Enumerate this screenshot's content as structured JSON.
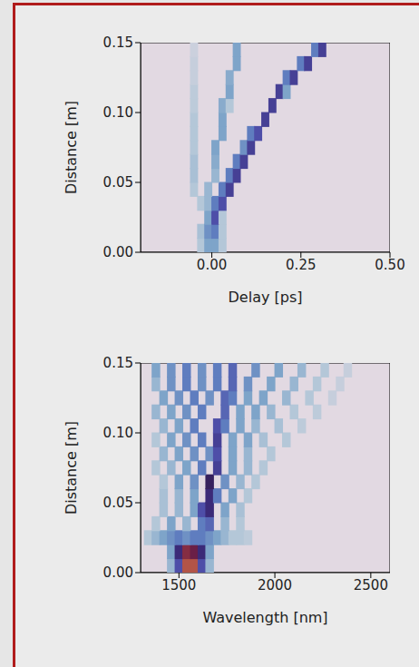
{
  "chart_data": [
    {
      "type": "heatmap",
      "x_label": "Delay [ps]",
      "y_label": "Distance [m]",
      "xlim": [
        -0.2,
        0.5
      ],
      "xticks": [
        {
          "value": 0,
          "label": "0.00"
        },
        {
          "value": 0.25,
          "label": "0.25"
        },
        {
          "value": 0.5,
          "label": "0.50"
        }
      ],
      "ylim": [
        0,
        0.15
      ],
      "yticks": [
        {
          "value": 0,
          "label": "0.00"
        },
        {
          "value": 0.05,
          "label": "0.05"
        },
        {
          "value": 0.1,
          "label": "0.10"
        },
        {
          "value": 0.15,
          "label": "0.15"
        }
      ],
      "grid": false,
      "tick_labels": true,
      "cell_size": [
        0.02,
        0.01
      ],
      "cells": [
        [
          -0.03,
          0.005,
          0.1
        ],
        [
          -0.01,
          0.005,
          0.2
        ],
        [
          0.01,
          0.005,
          0.2
        ],
        [
          0.03,
          0.005,
          0.1
        ],
        [
          -0.03,
          0.015,
          0.12
        ],
        [
          -0.01,
          0.015,
          0.25
        ],
        [
          0.01,
          0.015,
          0.3
        ],
        [
          0.03,
          0.015,
          0.1
        ],
        [
          -0.01,
          0.025,
          0.2
        ],
        [
          0.01,
          0.025,
          0.4
        ],
        [
          0.03,
          0.025,
          0.1
        ],
        [
          -0.03,
          0.035,
          0.1
        ],
        [
          -0.01,
          0.035,
          0.15
        ],
        [
          0.01,
          0.035,
          0.3
        ],
        [
          0.03,
          0.035,
          0.4
        ],
        [
          -0.05,
          0.045,
          0.1
        ],
        [
          -0.01,
          0.045,
          0.15
        ],
        [
          0.03,
          0.045,
          0.3
        ],
        [
          0.05,
          0.045,
          0.42
        ],
        [
          -0.05,
          0.055,
          0.12
        ],
        [
          0.01,
          0.055,
          0.15
        ],
        [
          0.05,
          0.055,
          0.3
        ],
        [
          0.07,
          0.055,
          0.42
        ],
        [
          -0.05,
          0.065,
          0.12
        ],
        [
          0.01,
          0.065,
          0.18
        ],
        [
          0.07,
          0.065,
          0.3
        ],
        [
          0.09,
          0.065,
          0.42
        ],
        [
          -0.05,
          0.075,
          0.1
        ],
        [
          0.01,
          0.075,
          0.2
        ],
        [
          0.09,
          0.075,
          0.25
        ],
        [
          0.11,
          0.075,
          0.42
        ],
        [
          -0.05,
          0.085,
          0.1
        ],
        [
          0.03,
          0.085,
          0.2
        ],
        [
          0.11,
          0.085,
          0.3
        ],
        [
          0.13,
          0.085,
          0.4
        ],
        [
          -0.05,
          0.095,
          0.1
        ],
        [
          0.03,
          0.095,
          0.2
        ],
        [
          0.15,
          0.095,
          0.42
        ],
        [
          -0.05,
          0.105,
          0.08
        ],
        [
          0.03,
          0.105,
          0.18
        ],
        [
          0.05,
          0.105,
          0.1
        ],
        [
          0.17,
          0.105,
          0.42
        ],
        [
          -0.05,
          0.115,
          0.08
        ],
        [
          0.05,
          0.115,
          0.2
        ],
        [
          0.19,
          0.115,
          0.42
        ],
        [
          0.21,
          0.115,
          0.2
        ],
        [
          -0.05,
          0.125,
          0.06
        ],
        [
          0.05,
          0.125,
          0.18
        ],
        [
          0.21,
          0.125,
          0.3
        ],
        [
          0.23,
          0.125,
          0.42
        ],
        [
          -0.05,
          0.135,
          0.06
        ],
        [
          0.07,
          0.135,
          0.2
        ],
        [
          0.25,
          0.135,
          0.3
        ],
        [
          0.27,
          0.135,
          0.42
        ],
        [
          -0.05,
          0.145,
          0.05
        ],
        [
          0.07,
          0.145,
          0.2
        ],
        [
          0.29,
          0.145,
          0.3
        ],
        [
          0.31,
          0.145,
          0.42
        ]
      ]
    },
    {
      "type": "heatmap",
      "x_label": "Wavelength [nm]",
      "y_label": "Distance [m]",
      "xlim": [
        1300,
        2600
      ],
      "xticks": [
        1500,
        2000,
        2500
      ],
      "ylim": [
        0,
        0.15
      ],
      "yticks": [
        {
          "value": 0,
          "label": "0.00"
        },
        {
          "value": 0.05,
          "label": "0.05"
        },
        {
          "value": 0.1,
          "label": "0.10"
        },
        {
          "value": 0.15,
          "label": "0.15"
        }
      ],
      "grid": false,
      "tick_labels": true,
      "cell_size": [
        40,
        0.01
      ],
      "cells": [
        [
          1460,
          0.005,
          0.15
        ],
        [
          1500,
          0.005,
          0.4
        ],
        [
          1540,
          0.005,
          0.75
        ],
        [
          1580,
          0.005,
          0.75
        ],
        [
          1620,
          0.005,
          0.4
        ],
        [
          1660,
          0.005,
          0.15
        ],
        [
          1460,
          0.015,
          0.2
        ],
        [
          1500,
          0.015,
          0.45
        ],
        [
          1540,
          0.015,
          0.65
        ],
        [
          1580,
          0.015,
          0.6
        ],
        [
          1620,
          0.015,
          0.45
        ],
        [
          1660,
          0.015,
          0.2
        ],
        [
          1340,
          0.025,
          0.1
        ],
        [
          1380,
          0.025,
          0.15
        ],
        [
          1420,
          0.025,
          0.2
        ],
        [
          1460,
          0.025,
          0.25
        ],
        [
          1500,
          0.025,
          0.3
        ],
        [
          1540,
          0.025,
          0.25
        ],
        [
          1580,
          0.025,
          0.3
        ],
        [
          1620,
          0.025,
          0.3
        ],
        [
          1660,
          0.025,
          0.25
        ],
        [
          1700,
          0.025,
          0.2
        ],
        [
          1740,
          0.025,
          0.15
        ],
        [
          1780,
          0.025,
          0.1
        ],
        [
          1820,
          0.025,
          0.1
        ],
        [
          1860,
          0.025,
          0.08
        ],
        [
          1380,
          0.035,
          0.1
        ],
        [
          1460,
          0.035,
          0.2
        ],
        [
          1540,
          0.035,
          0.15
        ],
        [
          1620,
          0.035,
          0.3
        ],
        [
          1660,
          0.035,
          0.35
        ],
        [
          1740,
          0.035,
          0.15
        ],
        [
          1820,
          0.035,
          0.1
        ],
        [
          1420,
          0.045,
          0.12
        ],
        [
          1500,
          0.045,
          0.15
        ],
        [
          1580,
          0.045,
          0.2
        ],
        [
          1620,
          0.045,
          0.4
        ],
        [
          1660,
          0.045,
          0.45
        ],
        [
          1740,
          0.045,
          0.2
        ],
        [
          1820,
          0.045,
          0.12
        ],
        [
          1420,
          0.055,
          0.12
        ],
        [
          1500,
          0.055,
          0.15
        ],
        [
          1580,
          0.055,
          0.2
        ],
        [
          1660,
          0.055,
          0.45
        ],
        [
          1700,
          0.055,
          0.3
        ],
        [
          1780,
          0.055,
          0.2
        ],
        [
          1860,
          0.055,
          0.1
        ],
        [
          1420,
          0.065,
          0.1
        ],
        [
          1500,
          0.065,
          0.2
        ],
        [
          1580,
          0.065,
          0.25
        ],
        [
          1660,
          0.065,
          0.47
        ],
        [
          1740,
          0.065,
          0.25
        ],
        [
          1820,
          0.065,
          0.15
        ],
        [
          1900,
          0.065,
          0.1
        ],
        [
          1380,
          0.075,
          0.1
        ],
        [
          1460,
          0.075,
          0.15
        ],
        [
          1540,
          0.075,
          0.2
        ],
        [
          1620,
          0.075,
          0.3
        ],
        [
          1700,
          0.075,
          0.42
        ],
        [
          1780,
          0.075,
          0.2
        ],
        [
          1860,
          0.075,
          0.15
        ],
        [
          1940,
          0.075,
          0.1
        ],
        [
          1420,
          0.085,
          0.15
        ],
        [
          1500,
          0.085,
          0.2
        ],
        [
          1580,
          0.085,
          0.25
        ],
        [
          1660,
          0.085,
          0.25
        ],
        [
          1700,
          0.085,
          0.4
        ],
        [
          1780,
          0.085,
          0.2
        ],
        [
          1860,
          0.085,
          0.15
        ],
        [
          1980,
          0.085,
          0.1
        ],
        [
          1380,
          0.095,
          0.1
        ],
        [
          1460,
          0.095,
          0.2
        ],
        [
          1540,
          0.095,
          0.25
        ],
        [
          1620,
          0.095,
          0.3
        ],
        [
          1700,
          0.095,
          0.42
        ],
        [
          1780,
          0.095,
          0.2
        ],
        [
          1860,
          0.095,
          0.2
        ],
        [
          1940,
          0.095,
          0.12
        ],
        [
          2060,
          0.095,
          0.1
        ],
        [
          1420,
          0.105,
          0.15
        ],
        [
          1500,
          0.105,
          0.2
        ],
        [
          1580,
          0.105,
          0.3
        ],
        [
          1700,
          0.105,
          0.4
        ],
        [
          1740,
          0.105,
          0.3
        ],
        [
          1820,
          0.105,
          0.2
        ],
        [
          1900,
          0.105,
          0.15
        ],
        [
          2020,
          0.105,
          0.12
        ],
        [
          2140,
          0.105,
          0.08
        ],
        [
          1380,
          0.115,
          0.15
        ],
        [
          1460,
          0.115,
          0.2
        ],
        [
          1540,
          0.115,
          0.25
        ],
        [
          1620,
          0.115,
          0.3
        ],
        [
          1740,
          0.115,
          0.35
        ],
        [
          1820,
          0.115,
          0.2
        ],
        [
          1900,
          0.115,
          0.2
        ],
        [
          1980,
          0.115,
          0.15
        ],
        [
          2100,
          0.115,
          0.1
        ],
        [
          2220,
          0.115,
          0.08
        ],
        [
          1420,
          0.125,
          0.2
        ],
        [
          1500,
          0.125,
          0.25
        ],
        [
          1580,
          0.125,
          0.3
        ],
        [
          1660,
          0.125,
          0.25
        ],
        [
          1740,
          0.125,
          0.35
        ],
        [
          1780,
          0.125,
          0.3
        ],
        [
          1860,
          0.125,
          0.2
        ],
        [
          1940,
          0.125,
          0.2
        ],
        [
          2060,
          0.125,
          0.15
        ],
        [
          2180,
          0.125,
          0.1
        ],
        [
          2300,
          0.125,
          0.06
        ],
        [
          1380,
          0.135,
          0.15
        ],
        [
          1460,
          0.135,
          0.25
        ],
        [
          1540,
          0.135,
          0.3
        ],
        [
          1620,
          0.135,
          0.25
        ],
        [
          1700,
          0.135,
          0.3
        ],
        [
          1780,
          0.135,
          0.35
        ],
        [
          1860,
          0.135,
          0.25
        ],
        [
          1980,
          0.135,
          0.2
        ],
        [
          2100,
          0.135,
          0.15
        ],
        [
          2220,
          0.135,
          0.1
        ],
        [
          2340,
          0.135,
          0.06
        ],
        [
          1380,
          0.145,
          0.2
        ],
        [
          1460,
          0.145,
          0.25
        ],
        [
          1540,
          0.145,
          0.3
        ],
        [
          1620,
          0.145,
          0.25
        ],
        [
          1700,
          0.145,
          0.3
        ],
        [
          1780,
          0.145,
          0.35
        ],
        [
          1900,
          0.145,
          0.25
        ],
        [
          2020,
          0.145,
          0.2
        ],
        [
          2140,
          0.145,
          0.15
        ],
        [
          2260,
          0.145,
          0.1
        ],
        [
          2380,
          0.145,
          0.06
        ]
      ]
    }
  ]
}
